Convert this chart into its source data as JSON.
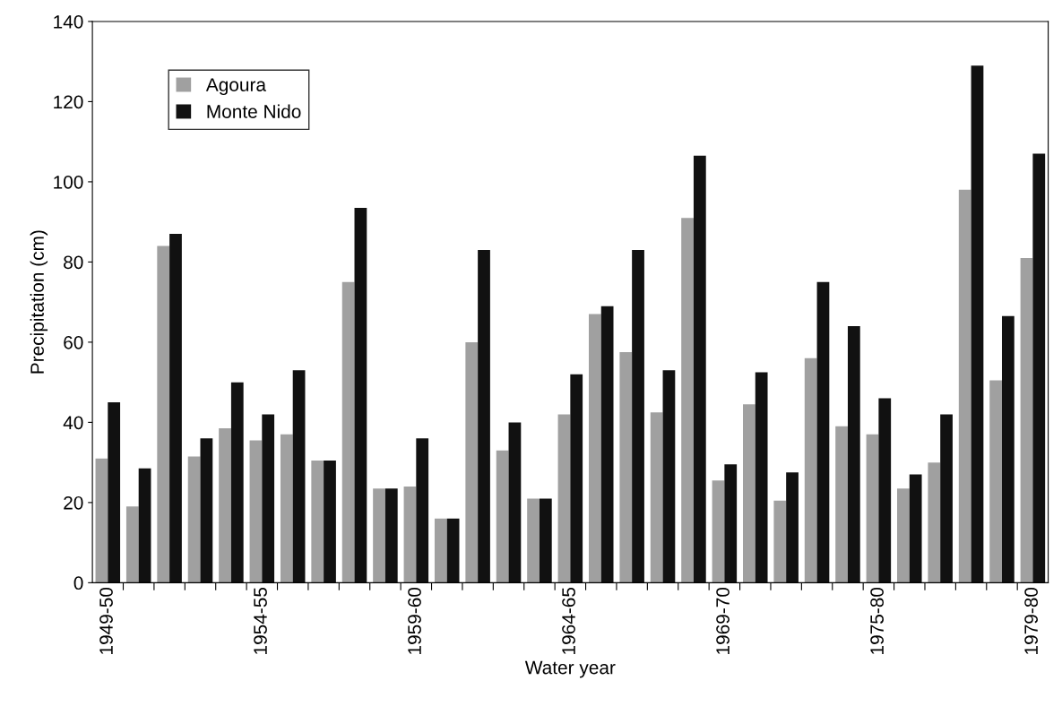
{
  "chart_data": {
    "type": "bar",
    "xlabel": "Water year",
    "ylabel": "Precipitation (cm)",
    "categories": [
      "1949-50",
      null,
      null,
      null,
      null,
      "1954-55",
      null,
      null,
      null,
      null,
      "1959-60",
      null,
      null,
      null,
      null,
      "1964-65",
      null,
      null,
      null,
      null,
      "1969-70",
      null,
      null,
      null,
      null,
      "1975-80",
      null,
      null,
      null,
      null,
      "1979-80"
    ],
    "series": [
      {
        "name": "Agoura",
        "color": "#a0a0a0",
        "values": [
          31,
          19,
          84,
          31.5,
          38.5,
          35.5,
          37,
          30.5,
          75,
          23.5,
          24,
          16,
          60,
          33,
          21,
          42,
          67,
          57.5,
          42.5,
          91,
          25.5,
          44.5,
          20.5,
          56,
          39,
          37,
          23.5,
          30,
          98,
          50.5,
          81
        ]
      },
      {
        "name": "Monte Nido",
        "color": "#111111",
        "values": [
          45,
          28.5,
          87,
          36,
          50,
          42,
          53,
          30.5,
          93.5,
          23.5,
          36,
          16,
          83,
          40,
          21,
          52,
          69,
          83,
          53,
          106.5,
          29.5,
          52.5,
          27.5,
          75,
          64,
          46,
          27,
          42,
          129,
          66.5,
          107
        ]
      }
    ],
    "ylim": [
      0,
      140
    ],
    "yticks": [
      0,
      20,
      40,
      60,
      80,
      100,
      120,
      140
    ],
    "grid": false,
    "legend": "top left"
  }
}
